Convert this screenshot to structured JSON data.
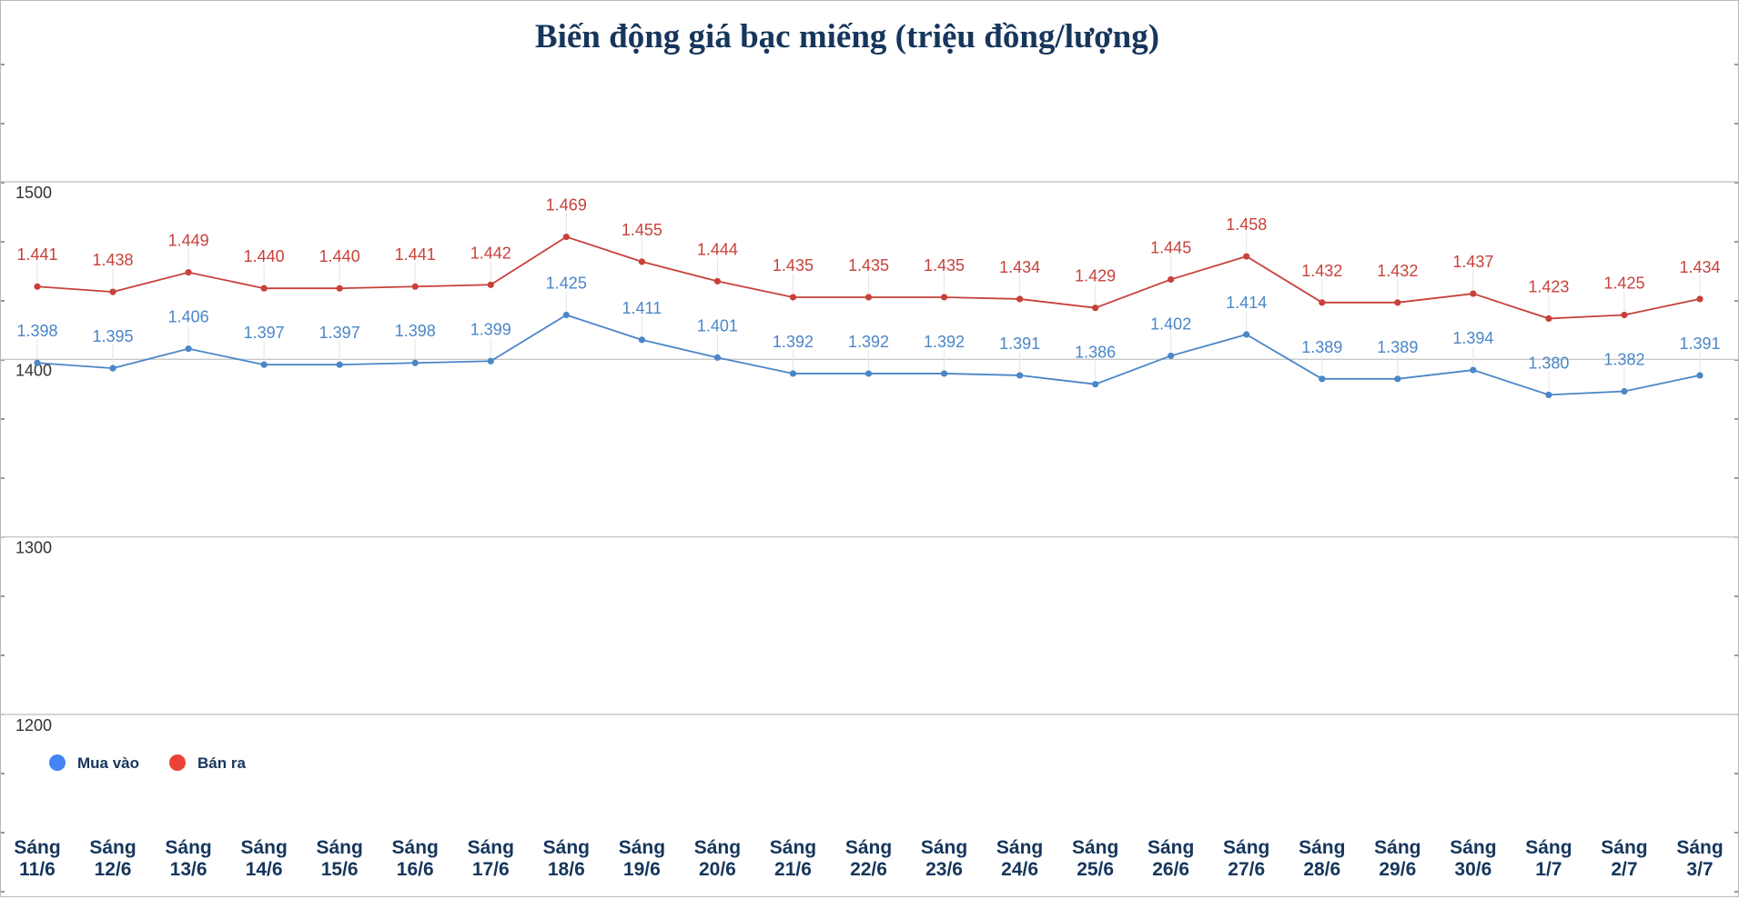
{
  "chart_data": {
    "type": "line",
    "title": "Biến động giá bạc miếng (triệu đồng/lượng)",
    "categories": [
      "Sáng\n11/6",
      "Sáng\n12/6",
      "Sáng\n13/6",
      "Sáng\n14/6",
      "Sáng\n15/6",
      "Sáng\n16/6",
      "Sáng\n17/6",
      "Sáng\n18/6",
      "Sáng\n19/6",
      "Sáng\n20/6",
      "Sáng\n21/6",
      "Sáng\n22/6",
      "Sáng\n23/6",
      "Sáng\n24/6",
      "Sáng\n25/6",
      "Sáng\n26/6",
      "Sáng\n27/6",
      "Sáng\n28/6",
      "Sáng\n29/6",
      "Sáng\n30/6",
      "Sáng\n1/7",
      "Sáng\n2/7",
      "Sáng\n3/7"
    ],
    "series": [
      {
        "name": "Mua vào",
        "color": "#4a86c8",
        "legend_color": "#4285f4",
        "values": [
          1398,
          1395,
          1406,
          1397,
          1397,
          1398,
          1399,
          1425,
          1411,
          1401,
          1392,
          1392,
          1392,
          1391,
          1386,
          1402,
          1414,
          1389,
          1389,
          1394,
          1380,
          1382,
          1391
        ],
        "labels": [
          "1.398",
          "1.395",
          "1.406",
          "1.397",
          "1.397",
          "1.398",
          "1.399",
          "1.425",
          "1.411",
          "1.401",
          "1.392",
          "1.392",
          "1.392",
          "1.391",
          "1.386",
          "1.402",
          "1.414",
          "1.389",
          "1.389",
          "1.394",
          "1.380",
          "1.382",
          "1.391"
        ]
      },
      {
        "name": "Bán ra",
        "color": "#c8413a",
        "legend_color": "#ea4335",
        "values": [
          1441,
          1438,
          1449,
          1440,
          1440,
          1441,
          1442,
          1469,
          1455,
          1444,
          1435,
          1435,
          1435,
          1434,
          1429,
          1445,
          1458,
          1432,
          1432,
          1437,
          1423,
          1425,
          1434
        ],
        "labels": [
          "1.441",
          "1.438",
          "1.449",
          "1.440",
          "1.440",
          "1.441",
          "1.442",
          "1.469",
          "1.455",
          "1.444",
          "1.435",
          "1.435",
          "1.435",
          "1.434",
          "1.429",
          "1.445",
          "1.458",
          "1.432",
          "1.432",
          "1.437",
          "1.423",
          "1.425",
          "1.434"
        ]
      }
    ],
    "y_ticks": [
      "1500",
      "1400",
      "1300",
      "1200"
    ],
    "ylim": [
      1200,
      1500
    ],
    "grid": true,
    "legend_position": "bottom-left"
  }
}
